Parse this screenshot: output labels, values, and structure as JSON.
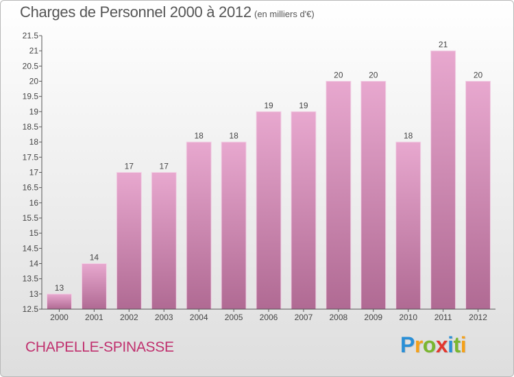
{
  "chart_data": {
    "type": "bar",
    "title": "Charges de Personnel 2000 à 2012",
    "subtitle": "(en milliers d'€)",
    "categories": [
      "2000",
      "2001",
      "2002",
      "2003",
      "2004",
      "2005",
      "2006",
      "2007",
      "2008",
      "2009",
      "2010",
      "2011",
      "2012"
    ],
    "values": [
      13,
      14,
      17,
      17,
      18,
      18,
      19,
      19,
      20,
      20,
      18,
      21,
      20
    ],
    "value_labels": [
      "13",
      "14",
      "17",
      "17",
      "18",
      "18",
      "19",
      "19",
      "20",
      "20",
      "18",
      "21",
      "20"
    ],
    "yticks": [
      "12.5",
      "13",
      "13.5",
      "14",
      "14.5",
      "15",
      "15.5",
      "16",
      "16.5",
      "17",
      "17.5",
      "18",
      "18.5",
      "19",
      "19.5",
      "20",
      "20.5",
      "21",
      "21.5"
    ],
    "ylim": [
      12.5,
      21.5
    ],
    "xlabel": "",
    "ylabel": "",
    "grid": false,
    "bar_color_top": "#e8a8cf",
    "bar_color_bottom": "#b06a93"
  },
  "commune": "CHAPELLE-SPINASSE",
  "logo": {
    "letters": [
      "P",
      "r",
      "o",
      "x",
      "i",
      "t",
      "i"
    ],
    "colors": [
      "#2a8fd6",
      "#f4a11a",
      "#7ab62f",
      "#e2372e",
      "#2a8fd6",
      "#7ab62f",
      "#f4a11a"
    ]
  }
}
